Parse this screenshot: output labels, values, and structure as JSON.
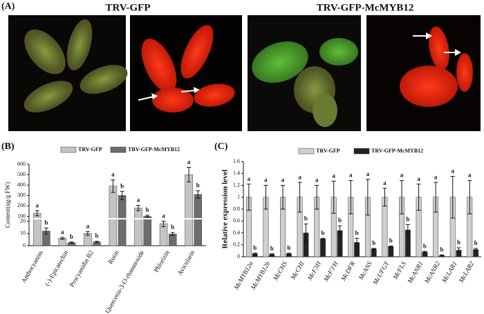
{
  "panel_a": {
    "label": "(A)",
    "groups": [
      "TRV-GFP",
      "TRV-GFP-McMYB12"
    ]
  },
  "chart_data": [
    {
      "type": "bar",
      "panel_label": "(B)",
      "ylabel": "Content(ug/g FW)",
      "legend": "top",
      "categories": [
        "Anthocyanins",
        "(-)-Epicatechin",
        "Procyanidin B2",
        "Rutin",
        "Quercetin-3-O-rhamnoside",
        "Phlorizin",
        "Avicularin"
      ],
      "series": [
        {
          "name": "TRV-GFP",
          "color": "#c4c4c4",
          "values": [
            130,
            6,
            10,
            390,
            180,
            18,
            500
          ],
          "errors": [
            25,
            0.8,
            1.5,
            60,
            25,
            2.5,
            70
          ],
          "labels": [
            "a",
            "a",
            "a",
            "a",
            "a",
            "a",
            "a"
          ]
        },
        {
          "name": "TRV-GFP-McMYB12",
          "color": "#6d6d6d",
          "values": [
            12,
            2.5,
            3,
            300,
            100,
            9.5,
            310
          ],
          "errors": [
            2.5,
            0.5,
            0.6,
            40,
            10,
            1.2,
            35
          ],
          "labels": [
            "b",
            "b",
            "b",
            "b",
            "b",
            "b",
            "b"
          ]
        }
      ],
      "ylim": [
        0,
        600
      ],
      "y_break": [
        20,
        100
      ],
      "yticks": [
        0,
        10,
        20,
        100,
        200,
        300,
        400,
        500,
        600
      ]
    },
    {
      "type": "bar",
      "panel_label": "(C)",
      "ylabel": "Relative expression level",
      "legend": "top",
      "categories": [
        "McMYB12a",
        "McMYB12b",
        "McCHS",
        "McCHI",
        "McF3H",
        "McF3'H",
        "McDFR",
        "McANS",
        "McUFGT",
        "McFLS",
        "McANR1",
        "McANR2",
        "McLAR1",
        "McLAR2"
      ],
      "series": [
        {
          "name": "TRV-GFP",
          "color": "#cfcfcf",
          "values": [
            1,
            1,
            1,
            1,
            1,
            1,
            1,
            1,
            1,
            1,
            1,
            1,
            1,
            1
          ],
          "errors": [
            0.22,
            0.2,
            0.2,
            0.25,
            0.2,
            0.27,
            0.28,
            0.3,
            0.15,
            0.28,
            0.22,
            0.25,
            0.35,
            0.28
          ],
          "labels": [
            "a",
            "a",
            "a",
            "a",
            "a",
            "a",
            "a",
            "a",
            "a",
            "a",
            "a",
            "a",
            "a",
            "a"
          ]
        },
        {
          "name": "TRV-GFP-McMYB12",
          "color": "#222222",
          "values": [
            0.05,
            0.04,
            0.05,
            0.4,
            0.3,
            0.44,
            0.24,
            0.13,
            0.17,
            0.45,
            0.08,
            0.02,
            0.11,
            0.12
          ],
          "errors": [
            0.01,
            0.01,
            0.01,
            0.15,
            0.01,
            0.08,
            0.07,
            0.01,
            0.01,
            0.09,
            0.01,
            0.01,
            0.04,
            0.02
          ],
          "labels": [
            "b",
            "b",
            "b",
            "b",
            "b",
            "b",
            "b",
            "b",
            "b",
            "b",
            "b",
            "b",
            "b",
            "b"
          ]
        }
      ],
      "ylim": [
        0,
        1.6
      ],
      "yticks": [
        0,
        0.2,
        0.4,
        0.6,
        0.8,
        1,
        1.2,
        1.4,
        1.6
      ]
    }
  ]
}
